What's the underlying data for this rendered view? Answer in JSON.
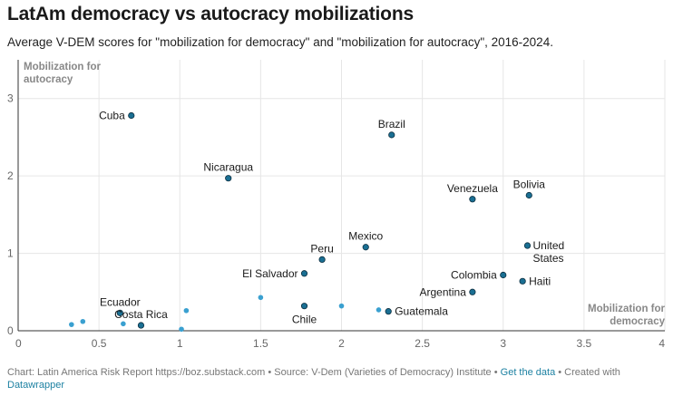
{
  "title": "LatAm democracy vs autocracy mobilizations",
  "subtitle": "Average V-DEM scores for \"mobilization for democracy\" and \"mobilization for autocracy\", 2016-2024.",
  "footer": {
    "prefix": "Chart: Latin America Risk Report https://boz.substack.com • Source: V-Dem (Varieties of Democracy) Institute • ",
    "get_data": "Get the data",
    "middle": " • Created with ",
    "datawrapper": "Datawrapper"
  },
  "colors": {
    "labeled_point": "#1a6f93",
    "unlabeled_point": "#3aa0d0",
    "grid": "#e6e6e6",
    "axis": "#333333"
  },
  "chart_data": {
    "type": "scatter",
    "xlabel": "Mobilization for democracy",
    "ylabel": "Mobilization for autocracy",
    "xlim": [
      0,
      4
    ],
    "ylim": [
      0,
      3.5
    ],
    "x_ticks": [
      "0",
      "0.5",
      "1",
      "1.5",
      "2",
      "2.5",
      "3",
      "3.5",
      "4"
    ],
    "x_tick_values": [
      0,
      0.5,
      1,
      1.5,
      2,
      2.5,
      3,
      3.5,
      4
    ],
    "y_ticks": [
      "0",
      "1",
      "2",
      "3"
    ],
    "y_tick_values": [
      0,
      1,
      2,
      3
    ],
    "grid": true,
    "points": [
      {
        "label": "Cuba",
        "x": 0.7,
        "y": 2.78,
        "anchor": "left"
      },
      {
        "label": "Brazil",
        "x": 2.31,
        "y": 2.53,
        "anchor": "above"
      },
      {
        "label": "Nicaragua",
        "x": 1.3,
        "y": 1.97,
        "anchor": "above"
      },
      {
        "label": "Venezuela",
        "x": 2.81,
        "y": 1.7,
        "anchor": "above"
      },
      {
        "label": "Bolivia",
        "x": 3.16,
        "y": 1.75,
        "anchor": "above"
      },
      {
        "label": "Mexico",
        "x": 2.15,
        "y": 1.08,
        "anchor": "above"
      },
      {
        "label": "Peru",
        "x": 1.88,
        "y": 0.92,
        "anchor": "above"
      },
      {
        "label": "El Salvador",
        "x": 1.77,
        "y": 0.74,
        "anchor": "left"
      },
      {
        "label": "United States",
        "x": 3.15,
        "y": 1.1,
        "anchor": "right2"
      },
      {
        "label": "Colombia",
        "x": 3.0,
        "y": 0.72,
        "anchor": "left"
      },
      {
        "label": "Haiti",
        "x": 3.12,
        "y": 0.64,
        "anchor": "right"
      },
      {
        "label": "Argentina",
        "x": 2.81,
        "y": 0.5,
        "anchor": "left"
      },
      {
        "label": "Guatemala",
        "x": 2.29,
        "y": 0.25,
        "anchor": "right"
      },
      {
        "label": "Chile",
        "x": 1.77,
        "y": 0.32,
        "anchor": "below"
      },
      {
        "label": "Ecuador",
        "x": 0.63,
        "y": 0.23,
        "anchor": "above"
      },
      {
        "label": "Costa Rica",
        "x": 0.76,
        "y": 0.07,
        "anchor": "above"
      },
      {
        "label": "",
        "x": 0.33,
        "y": 0.08
      },
      {
        "label": "",
        "x": 0.4,
        "y": 0.12
      },
      {
        "label": "",
        "x": 0.65,
        "y": 0.09
      },
      {
        "label": "",
        "x": 1.01,
        "y": 0.02
      },
      {
        "label": "",
        "x": 1.04,
        "y": 0.26
      },
      {
        "label": "",
        "x": 1.5,
        "y": 0.43
      },
      {
        "label": "",
        "x": 2.0,
        "y": 0.32
      },
      {
        "label": "",
        "x": 2.23,
        "y": 0.27
      }
    ]
  }
}
